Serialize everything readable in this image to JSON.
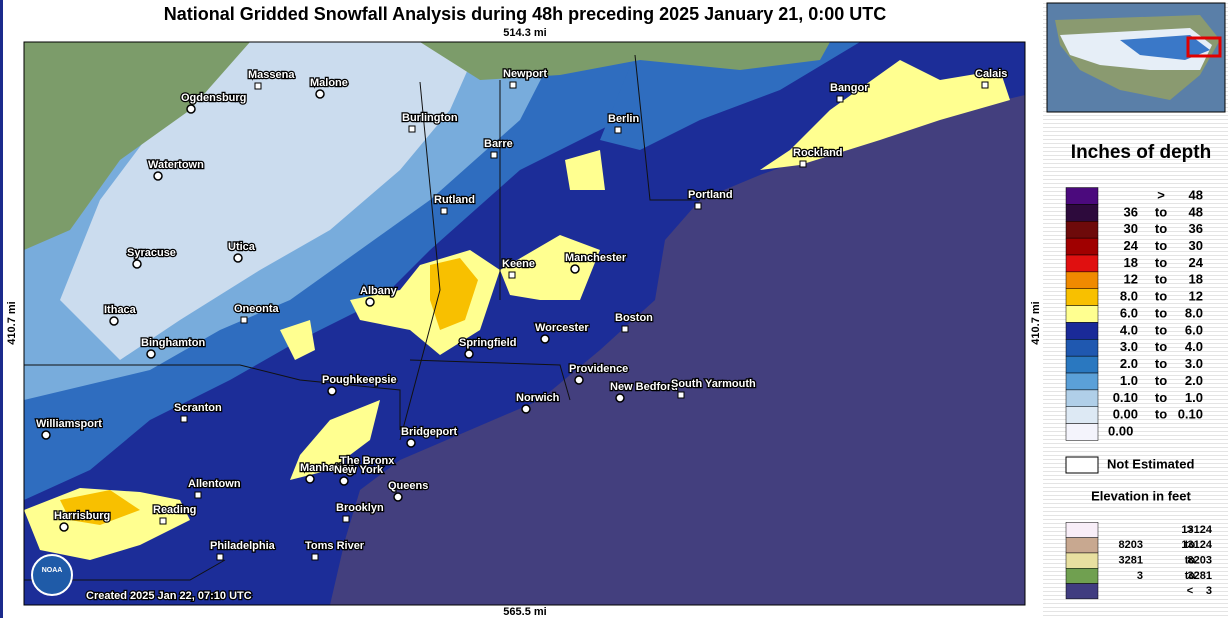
{
  "header": {
    "title": "National Gridded Snowfall Analysis during 48h preceding 2025 January 21, 0:00 UTC",
    "top_scale": "514.3 mi",
    "bottom_scale": "565.5 mi",
    "left_scale": "410.7 mi",
    "right_scale": "410.7 mi"
  },
  "map": {
    "cities": [
      "Massena",
      "Malone",
      "Newport",
      "Ogdensburg",
      "Burlington",
      "Berlin",
      "Bangor",
      "Calais",
      "Barre",
      "Watertown",
      "Rockland",
      "Portland",
      "Rutland",
      "Syracuse",
      "Utica",
      "Keene",
      "Manchester",
      "Albany",
      "Ithaca",
      "Oneonta",
      "Boston",
      "Worcester",
      "Springfield",
      "Binghamton",
      "Providence",
      "Poughkeepsie",
      "New Bedford",
      "South Yarmouth",
      "Scranton",
      "Norwich",
      "Williamsport",
      "Bridgeport",
      "The Bronx",
      "Manhattan",
      "New York",
      "Queens",
      "Allentown",
      "Harrisburg",
      "Reading",
      "Brooklyn",
      "Philadelphia",
      "Toms River"
    ],
    "logo": "NOAA",
    "created": "Created 2025 Jan 22, 07:10 UTC"
  },
  "legend": {
    "title": "Inches of depth",
    "rows": [
      {
        "text": [
          ">",
          "48"
        ],
        "color": "#4b0a7d"
      },
      {
        "text": [
          "36",
          "to",
          "48"
        ],
        "color": "#2d0a3c"
      },
      {
        "text": [
          "30",
          "to",
          "36"
        ],
        "color": "#6e0a0a"
      },
      {
        "text": [
          "24",
          "to",
          "30"
        ],
        "color": "#a00000"
      },
      {
        "text": [
          "18",
          "to",
          "24"
        ],
        "color": "#e01010"
      },
      {
        "text": [
          "12",
          "to",
          "18"
        ],
        "color": "#f08a00"
      },
      {
        "text": [
          "8.0",
          "to",
          "12"
        ],
        "color": "#f8c000"
      },
      {
        "text": [
          "6.0",
          "to",
          "8.0"
        ],
        "color": "#ffff90"
      },
      {
        "text": [
          "4.0",
          "to",
          "6.0"
        ],
        "color": "#1a2a98"
      },
      {
        "text": [
          "3.0",
          "to",
          "4.0"
        ],
        "color": "#1f58b0"
      },
      {
        "text": [
          "2.0",
          "to",
          "3.0"
        ],
        "color": "#2a78c0"
      },
      {
        "text": [
          "1.0",
          "to",
          "2.0"
        ],
        "color": "#5ba0d8"
      },
      {
        "text": [
          "0.10",
          "to",
          "1.0"
        ],
        "color": "#b0cfe8"
      },
      {
        "text": [
          "0.00",
          "to",
          "0.10"
        ],
        "color": "#dde9f4"
      },
      {
        "text": [
          "0.00"
        ],
        "color": "#f4f4fc"
      }
    ],
    "not_estimated": "Not Estimated",
    "elevation_title": "Elevation in feet",
    "elevation_rows": [
      {
        "text": [
          ">",
          "13124"
        ],
        "color": "#f8eef8"
      },
      {
        "text": [
          "8203",
          "to",
          "13124"
        ],
        "color": "#c8a890"
      },
      {
        "text": [
          "3281",
          "to",
          "8203"
        ],
        "color": "#e8e0a0"
      },
      {
        "text": [
          "3",
          "to",
          "3281"
        ],
        "color": "#70a050"
      },
      {
        "text": [
          "<",
          "3"
        ],
        "color": "#403c80"
      }
    ]
  }
}
